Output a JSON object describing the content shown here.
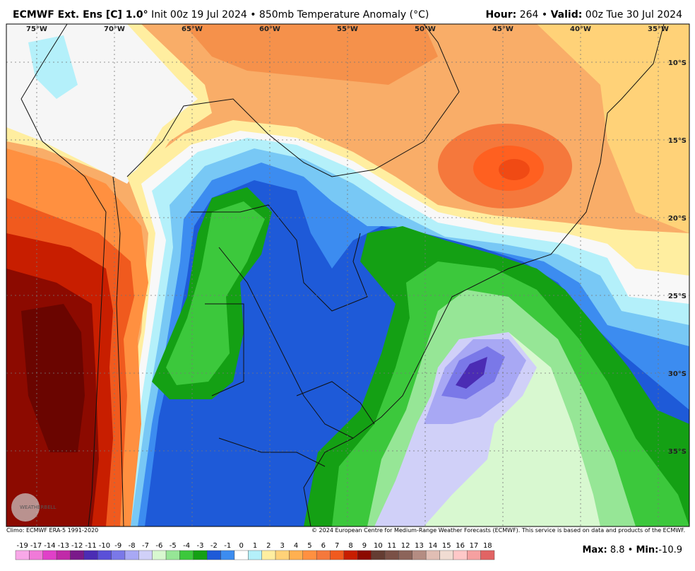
{
  "header": {
    "title": "ECMWF Ext. Ens [C] 1.0°",
    "subtitle": "Init 00z 19 Jul 2024 • 850mb Temperature Anomaly (°C)",
    "hour_label": "Hour:",
    "hour_value": "264 •",
    "valid_label": "Valid:",
    "valid_value": "00z Tue 30 Jul 2024"
  },
  "map": {
    "lon_labels": [
      "75°W",
      "70°W",
      "65°W",
      "60°W",
      "55°W",
      "50°W",
      "45°W",
      "40°W",
      "35°W"
    ],
    "lat_labels": [
      "10°S",
      "15°S",
      "20°S",
      "25°S",
      "30°S",
      "35°S"
    ],
    "logo": "WEATHERBELL"
  },
  "footer": {
    "climo": "Climo: ECMWF ERA-5 1991-2020",
    "copyright": "© 2024 European Centre for Medium-Range Weather Forecasts (ECMWF). This service is based on data and products of the ECMWF."
  },
  "colorbar": {
    "labels": [
      -19,
      -17,
      -14,
      -13,
      -12,
      -11,
      -10,
      -9,
      -8,
      -7,
      -6,
      -5,
      -4,
      -3,
      -2,
      -1,
      0,
      1,
      2,
      3,
      4,
      5,
      6,
      7,
      8,
      9,
      10,
      11,
      12,
      13,
      14,
      15,
      16,
      17,
      18
    ],
    "colors": [
      "#f8a8e8",
      "#f07ad8",
      "#e040c8",
      "#c02aa8",
      "#7a1a8a",
      "#4b2cb4",
      "#5a50d8",
      "#7a78e8",
      "#a8a8f4",
      "#d0d0f8",
      "#d8f8d0",
      "#96e696",
      "#3cc83c",
      "#14a014",
      "#1e5ad8",
      "#3c8cf0",
      "#ffffff",
      "#b4f0fa",
      "#ffeea0",
      "#ffd278",
      "#ffb050",
      "#ff9040",
      "#f5783c",
      "#f05a1e",
      "#c81e00",
      "#8c0a00",
      "#643c32",
      "#7a5046",
      "#8c645a",
      "#b48c82",
      "#e1beb4",
      "#f0dcd2",
      "#ffc8c8",
      "#f5a0a0",
      "#e16464"
    ]
  },
  "stats": {
    "max_label": "Max:",
    "max_value": "8.8 •",
    "min_label": "Min:",
    "min_value": "-10.9"
  }
}
